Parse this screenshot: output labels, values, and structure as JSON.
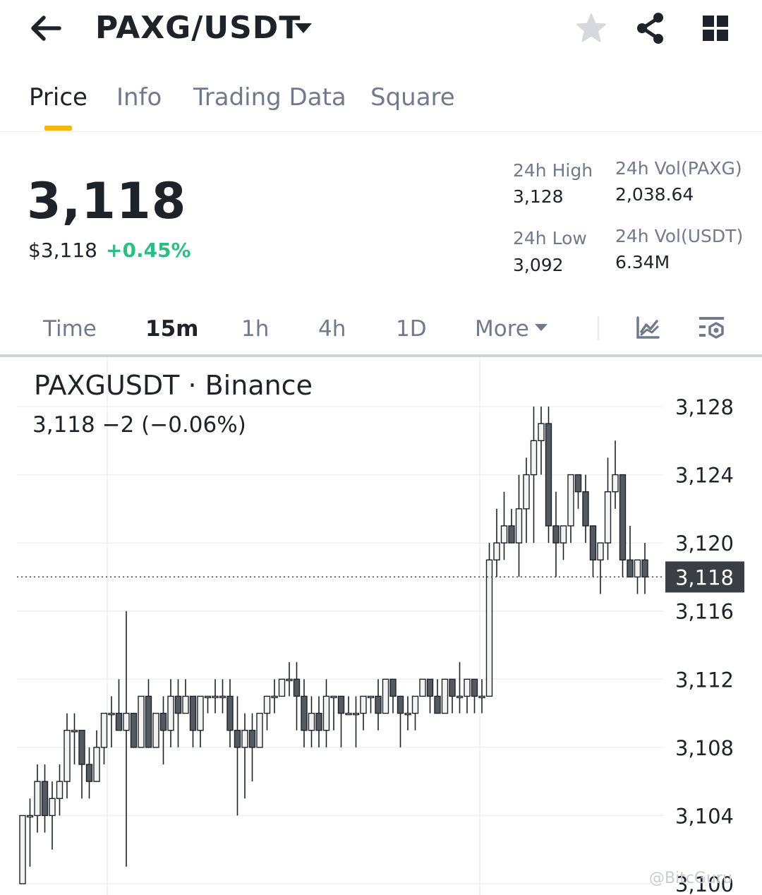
{
  "header": {
    "title": "PAXG/USDT",
    "icons": [
      "back-arrow-icon",
      "dropdown-caret-icon",
      "star-icon",
      "share-icon",
      "grid-icon"
    ]
  },
  "tabs": [
    {
      "label": "Price",
      "active": true
    },
    {
      "label": "Info",
      "active": false
    },
    {
      "label": "Trading Data",
      "active": false
    },
    {
      "label": "Square",
      "active": false
    }
  ],
  "price": {
    "last": "3,118",
    "usd": "$3,118",
    "change": "+0.45%"
  },
  "stats": {
    "high_label": "24h High",
    "high_value": "3,128",
    "low_label": "24h Low",
    "low_value": "3,092",
    "vol_base_label": "24h Vol(PAXG)",
    "vol_base_value": "2,038.64",
    "vol_quote_label": "24h Vol(USDT)",
    "vol_quote_value": "6.34M"
  },
  "intervals": [
    {
      "label": "Time",
      "active": false
    },
    {
      "label": "15m",
      "active": true
    },
    {
      "label": "1h",
      "active": false
    },
    {
      "label": "4h",
      "active": false
    },
    {
      "label": "1D",
      "active": false
    },
    {
      "label": "More",
      "active": false
    }
  ],
  "chart": {
    "title": "PAXGUSDT · Binance",
    "last_line": "3,118  −2 (−0.06%)",
    "current_price_label": "3,118",
    "watermark": "@BitcGuru",
    "colors": {
      "up_fill": "#f3f3f3",
      "down_fill": "#555a60",
      "stroke": "#1e2329",
      "price_tag": "#3a3f46"
    }
  },
  "chart_data": {
    "type": "candlestick",
    "title": "PAXGUSDT · Binance",
    "ylim": [
      3100,
      3130
    ],
    "yticks": [
      3100,
      3104,
      3108,
      3112,
      3116,
      3120,
      3124,
      3128
    ],
    "ytick_labels": [
      "3,100",
      "3,104",
      "3,108",
      "3,112",
      "3,116",
      "3,120",
      "3,124",
      "3,128"
    ],
    "current_price": 3118,
    "candles": [
      [
        3100,
        3104,
        3100,
        3104
      ],
      [
        3104,
        3105,
        3101,
        3104
      ],
      [
        3104,
        3107,
        3103,
        3106
      ],
      [
        3106,
        3107,
        3103,
        3104
      ],
      [
        3104,
        3106,
        3102,
        3105
      ],
      [
        3105,
        3107,
        3104,
        3106
      ],
      [
        3106,
        3110,
        3105,
        3109
      ],
      [
        3109,
        3110,
        3107,
        3109
      ],
      [
        3109,
        3109,
        3105,
        3107
      ],
      [
        3107,
        3108,
        3105,
        3106
      ],
      [
        3106,
        3109,
        3106,
        3108
      ],
      [
        3108,
        3110,
        3107,
        3110
      ],
      [
        3110,
        3111,
        3108,
        3110
      ],
      [
        3110,
        3112,
        3109,
        3109
      ],
      [
        3109,
        3116,
        3101,
        3110
      ],
      [
        3110,
        3110,
        3108,
        3108
      ],
      [
        3108,
        3111,
        3108,
        3111
      ],
      [
        3111,
        3112,
        3108,
        3108
      ],
      [
        3108,
        3110,
        3108,
        3110
      ],
      [
        3110,
        3111,
        3107,
        3109
      ],
      [
        3109,
        3112,
        3108,
        3111
      ],
      [
        3111,
        3112,
        3108,
        3110
      ],
      [
        3110,
        3112,
        3110,
        3111
      ],
      [
        3111,
        3111,
        3108,
        3109
      ],
      [
        3109,
        3111,
        3108,
        3111
      ],
      [
        3111,
        3111,
        3110,
        3111
      ],
      [
        3111,
        3112,
        3110,
        3111
      ],
      [
        3111,
        3112,
        3110,
        3111
      ],
      [
        3111,
        3112,
        3108,
        3109
      ],
      [
        3109,
        3111,
        3104,
        3108
      ],
      [
        3108,
        3110,
        3105,
        3109
      ],
      [
        3109,
        3110,
        3106,
        3108
      ],
      [
        3108,
        3110,
        3108,
        3110
      ],
      [
        3110,
        3111,
        3109,
        3111
      ],
      [
        3111,
        3112,
        3110,
        3111
      ],
      [
        3111,
        3112,
        3111,
        3112
      ],
      [
        3112,
        3113,
        3111,
        3112
      ],
      [
        3112,
        3113,
        3109,
        3111
      ],
      [
        3111,
        3112,
        3108,
        3109
      ],
      [
        3109,
        3111,
        3108,
        3110
      ],
      [
        3110,
        3111,
        3108,
        3109
      ],
      [
        3109,
        3112,
        3108,
        3111
      ],
      [
        3111,
        3111,
        3109,
        3111
      ],
      [
        3111,
        3111,
        3108,
        3110
      ],
      [
        3110,
        3111,
        3110,
        3110
      ],
      [
        3110,
        3111,
        3108,
        3110
      ],
      [
        3110,
        3111,
        3109,
        3111
      ],
      [
        3111,
        3111,
        3110,
        3111
      ],
      [
        3111,
        3112,
        3109,
        3110
      ],
      [
        3110,
        3112,
        3110,
        3112
      ],
      [
        3112,
        3112,
        3110,
        3111
      ],
      [
        3111,
        3111,
        3108,
        3110
      ],
      [
        3110,
        3111,
        3109,
        3110
      ],
      [
        3110,
        3111,
        3109,
        3111
      ],
      [
        3111,
        3112,
        3111,
        3112
      ],
      [
        3112,
        3112,
        3110,
        3111
      ],
      [
        3111,
        3112,
        3110,
        3110
      ],
      [
        3110,
        3112,
        3110,
        3112
      ],
      [
        3112,
        3112,
        3110,
        3111
      ],
      [
        3111,
        3113,
        3110,
        3111
      ],
      [
        3111,
        3112,
        3110,
        3112
      ],
      [
        3112,
        3112,
        3110,
        3111
      ],
      [
        3111,
        3112,
        3110,
        3111
      ],
      [
        3111,
        3120,
        3111,
        3119
      ],
      [
        3119,
        3122,
        3118,
        3120
      ],
      [
        3120,
        3123,
        3119,
        3121
      ],
      [
        3121,
        3122,
        3120,
        3120
      ],
      [
        3120,
        3124,
        3118,
        3122
      ],
      [
        3122,
        3125,
        3120,
        3124
      ],
      [
        3124,
        3128,
        3120,
        3126
      ],
      [
        3126,
        3128,
        3124,
        3127
      ],
      [
        3127,
        3128,
        3120,
        3121
      ],
      [
        3121,
        3123,
        3118,
        3120
      ],
      [
        3120,
        3121,
        3119,
        3121
      ],
      [
        3121,
        3124,
        3120,
        3124
      ],
      [
        3124,
        3124,
        3122,
        3123
      ],
      [
        3123,
        3124,
        3120,
        3121
      ],
      [
        3121,
        3121,
        3118,
        3119
      ],
      [
        3119,
        3120,
        3117,
        3120
      ],
      [
        3120,
        3125,
        3119,
        3123
      ],
      [
        3123,
        3126,
        3122,
        3124
      ],
      [
        3124,
        3124,
        3118,
        3119
      ],
      [
        3119,
        3121,
        3118,
        3118
      ],
      [
        3118,
        3119,
        3117,
        3119
      ],
      [
        3119,
        3120,
        3117,
        3118
      ]
    ]
  }
}
